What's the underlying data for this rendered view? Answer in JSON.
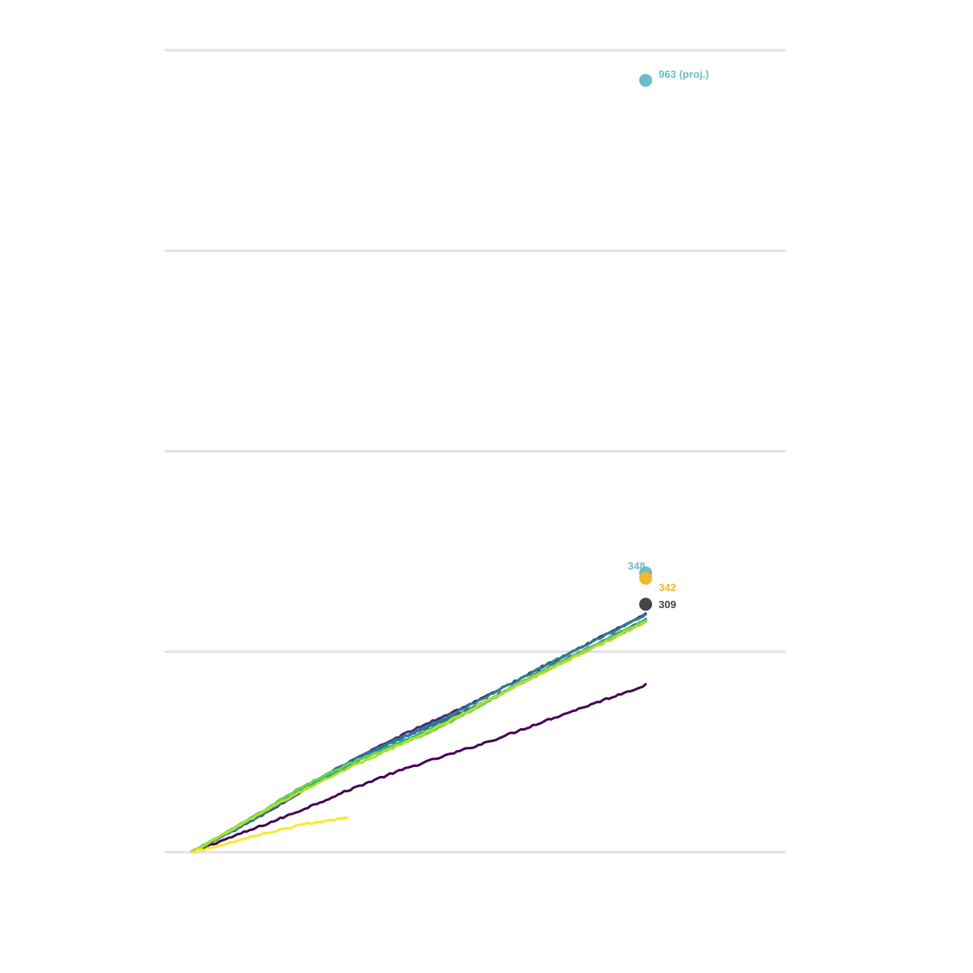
{
  "chart_data": {
    "type": "line",
    "title": "",
    "xlabel": "",
    "ylabel": "",
    "x_range": [
      1,
      150
    ],
    "x_axis_range": [
      -8,
      196
    ],
    "ylim": [
      0,
      1200
    ],
    "gridlines_y": [
      0,
      300,
      600,
      900,
      1200
    ],
    "grid": true,
    "legend": "none",
    "tick_labels_visible": false,
    "series": [
      {
        "color": "#440154",
        "final_value": 250
      },
      {
        "color": "#482878",
        "final_value": 356
      },
      {
        "color": "#3e4a89",
        "final_value": 347
      },
      {
        "color": "#31688e",
        "final_value": 348
      },
      {
        "color": "#26828e",
        "final_value": 355
      },
      {
        "color": "#1f9e89",
        "final_value": 345
      },
      {
        "color": "#35b779",
        "final_value": 346
      },
      {
        "color": "#6ece58",
        "final_value": 347
      },
      {
        "color": "#b5de2b",
        "final_value": 344
      },
      {
        "color": "#fde725",
        "final_value": 140,
        "last_x": 52
      }
    ],
    "markers": [
      {
        "label": "963 (proj.)",
        "x": 150,
        "value": 1155,
        "color": "#6cbccc"
      },
      {
        "label": "348",
        "x": 150,
        "value": 418,
        "color": "#6cbccc"
      },
      {
        "label": "342",
        "x": 150,
        "value": 410,
        "color": "#f2b92b"
      },
      {
        "label": "309",
        "x": 150,
        "value": 371,
        "color": "#444444"
      }
    ]
  }
}
